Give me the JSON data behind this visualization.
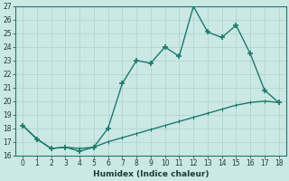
{
  "xlabel": "Humidex (Indice chaleur)",
  "x": [
    0,
    1,
    2,
    3,
    4,
    5,
    6,
    7,
    8,
    9,
    10,
    11,
    12,
    13,
    14,
    15,
    16,
    17,
    18
  ],
  "y_curve": [
    18.2,
    17.2,
    16.5,
    16.6,
    16.3,
    16.6,
    18.0,
    21.3,
    23.0,
    22.8,
    24.0,
    23.3,
    27.0,
    25.1,
    24.7,
    25.6,
    23.5,
    20.8,
    19.9
  ],
  "y_line": [
    18.2,
    17.2,
    16.5,
    16.6,
    16.5,
    16.6,
    17.0,
    17.3,
    17.6,
    17.9,
    18.2,
    18.5,
    18.8,
    19.1,
    19.4,
    19.7,
    19.9,
    20.0,
    19.9
  ],
  "ylim": [
    16,
    27
  ],
  "xlim": [
    -0.5,
    18.5
  ],
  "yticks": [
    16,
    17,
    18,
    19,
    20,
    21,
    22,
    23,
    24,
    25,
    26,
    27
  ],
  "xticks": [
    0,
    1,
    2,
    3,
    4,
    5,
    6,
    7,
    8,
    9,
    10,
    11,
    12,
    13,
    14,
    15,
    16,
    17,
    18
  ],
  "line_color": "#1a7a6e",
  "bg_color": "#cce8e4",
  "grid_color": "#b0d5d0",
  "font_color": "#1a3a3a",
  "marker_size": 4.5,
  "linewidth": 1.0
}
